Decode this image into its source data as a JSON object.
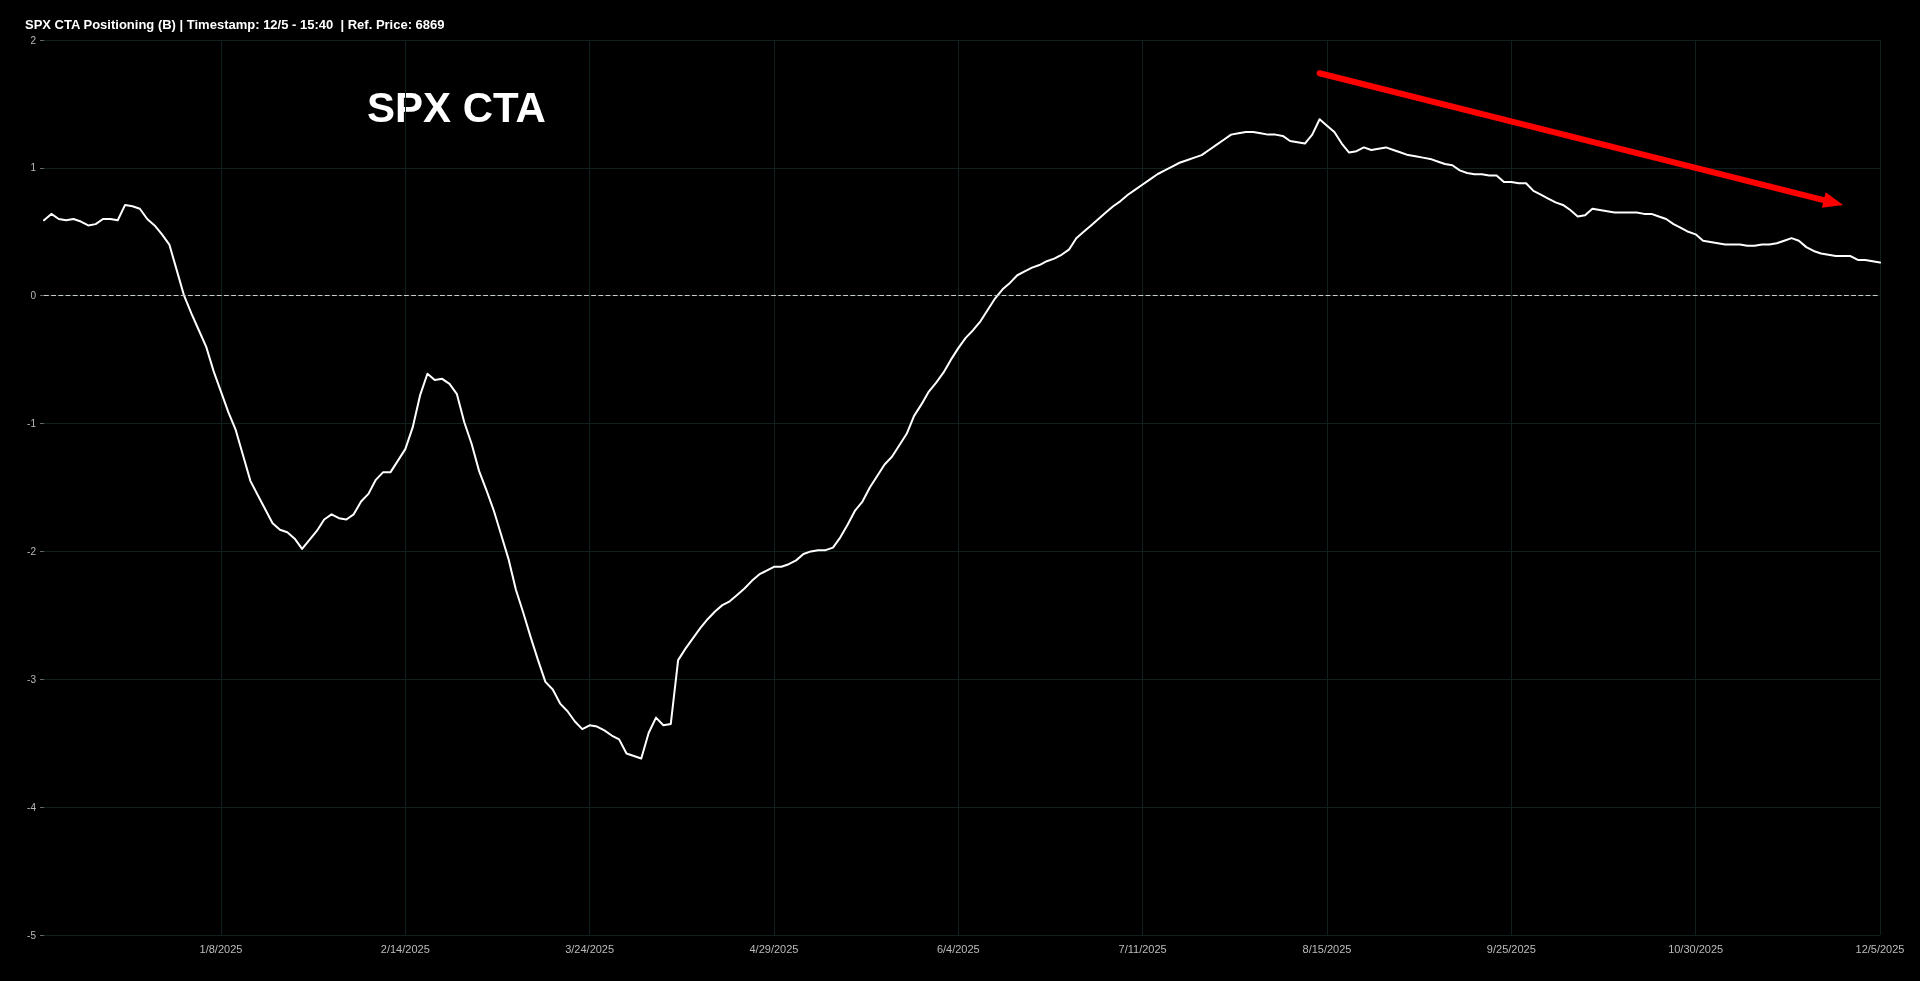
{
  "chart_data": {
    "type": "line",
    "title": "SPX CTA Positioning (B) | Timestamp: 12/5 - 15:40  | Ref. Price: 6869",
    "annotations": [
      "SPX CTA"
    ],
    "categories": [
      null,
      null,
      null,
      null,
      null,
      null,
      null,
      null,
      null,
      null,
      null,
      null,
      null,
      null,
      null,
      null,
      null,
      null,
      null,
      null,
      null,
      null,
      null,
      null,
      "1/8/2025",
      null,
      null,
      null,
      null,
      null,
      null,
      null,
      null,
      null,
      null,
      null,
      null,
      null,
      null,
      null,
      null,
      null,
      null,
      null,
      null,
      null,
      null,
      null,
      null,
      "2/14/2025",
      null,
      null,
      null,
      null,
      null,
      null,
      null,
      null,
      null,
      null,
      null,
      null,
      null,
      null,
      null,
      null,
      null,
      null,
      null,
      null,
      null,
      null,
      null,
      null,
      "3/24/2025",
      null,
      null,
      null,
      null,
      null,
      null,
      null,
      null,
      null,
      null,
      null,
      null,
      null,
      null,
      null,
      null,
      null,
      null,
      null,
      null,
      null,
      null,
      null,
      null,
      "4/29/2025",
      null,
      null,
      null,
      null,
      null,
      null,
      null,
      null,
      null,
      null,
      null,
      null,
      null,
      null,
      null,
      null,
      null,
      null,
      null,
      null,
      null,
      null,
      null,
      null,
      "6/4/2025",
      null,
      null,
      null,
      null,
      null,
      null,
      null,
      null,
      null,
      null,
      null,
      null,
      null,
      null,
      null,
      null,
      null,
      null,
      null,
      null,
      null,
      null,
      null,
      null,
      "7/11/2025",
      null,
      null,
      null,
      null,
      null,
      null,
      null,
      null,
      null,
      null,
      null,
      null,
      null,
      null,
      null,
      null,
      null,
      null,
      null,
      null,
      null,
      null,
      null,
      null,
      "8/15/2025",
      null,
      null,
      null,
      null,
      null,
      null,
      null,
      null,
      null,
      null,
      null,
      null,
      null,
      null,
      null,
      null,
      null,
      null,
      null,
      null,
      null,
      null,
      null,
      null,
      "9/25/2025",
      null,
      null,
      null,
      null,
      null,
      null,
      null,
      null,
      null,
      null,
      null,
      null,
      null,
      null,
      null,
      null,
      null,
      null,
      null,
      null,
      null,
      null,
      null,
      null,
      "10/30/2025",
      null,
      null,
      null,
      null,
      null,
      null,
      null,
      null,
      null,
      null,
      null,
      null,
      null,
      null,
      null,
      null,
      null,
      null,
      null,
      null,
      null,
      null,
      null,
      null,
      "12/5/2025"
    ],
    "series": [
      {
        "color": "#ffffff",
        "values": [
          0.59,
          0.64,
          0.6,
          0.59,
          0.6,
          0.58,
          0.55,
          0.56,
          0.6,
          0.6,
          0.59,
          0.71,
          0.7,
          0.68,
          0.6,
          0.55,
          0.48,
          0.4,
          0.2,
          0.0,
          -0.14,
          -0.27,
          -0.4,
          -0.59,
          -0.75,
          -0.91,
          -1.05,
          -1.25,
          -1.45,
          -1.56,
          -1.67,
          -1.78,
          -1.83,
          -1.85,
          -1.9,
          -1.98,
          -1.91,
          -1.84,
          -1.75,
          -1.71,
          -1.74,
          -1.75,
          -1.71,
          -1.61,
          -1.55,
          -1.44,
          -1.38,
          -1.38,
          -1.29,
          -1.2,
          -1.03,
          -0.78,
          -0.61,
          -0.66,
          -0.65,
          -0.69,
          -0.77,
          -0.99,
          -1.16,
          -1.37,
          -1.52,
          -1.68,
          -1.87,
          -2.06,
          -2.3,
          -2.48,
          -2.67,
          -2.85,
          -3.02,
          -3.08,
          -3.19,
          -3.25,
          -3.33,
          -3.39,
          -3.36,
          -3.37,
          -3.4,
          -3.44,
          -3.47,
          -3.58,
          -3.6,
          -3.62,
          -3.42,
          -3.3,
          -3.36,
          -3.35,
          -2.85,
          -2.76,
          -2.68,
          -2.6,
          -2.53,
          -2.47,
          -2.42,
          -2.39,
          -2.34,
          -2.29,
          -2.23,
          -2.18,
          -2.15,
          -2.12,
          -2.12,
          -2.1,
          -2.07,
          -2.02,
          -2.0,
          -1.99,
          -1.99,
          -1.97,
          -1.89,
          -1.79,
          -1.68,
          -1.61,
          -1.5,
          -1.41,
          -1.32,
          -1.26,
          -1.17,
          -1.08,
          -0.94,
          -0.85,
          -0.75,
          -0.68,
          -0.6,
          -0.5,
          -0.41,
          -0.33,
          -0.27,
          -0.2,
          -0.11,
          -0.02,
          0.05,
          0.1,
          0.16,
          0.19,
          0.22,
          0.24,
          0.27,
          0.29,
          0.32,
          0.36,
          0.45,
          0.5,
          0.55,
          0.6,
          0.65,
          0.7,
          0.74,
          0.79,
          0.83,
          0.87,
          0.91,
          0.95,
          0.98,
          1.01,
          1.04,
          1.06,
          1.08,
          1.1,
          1.14,
          1.18,
          1.22,
          1.26,
          1.27,
          1.28,
          1.28,
          1.27,
          1.26,
          1.26,
          1.25,
          1.21,
          1.2,
          1.19,
          1.26,
          1.38,
          1.33,
          1.28,
          1.19,
          1.12,
          1.13,
          1.16,
          1.14,
          1.15,
          1.16,
          1.14,
          1.12,
          1.1,
          1.09,
          1.08,
          1.07,
          1.05,
          1.03,
          1.02,
          0.98,
          0.96,
          0.95,
          0.95,
          0.94,
          0.94,
          0.89,
          0.89,
          0.88,
          0.88,
          0.82,
          0.79,
          0.76,
          0.73,
          0.71,
          0.67,
          0.62,
          0.63,
          0.68,
          0.67,
          0.66,
          0.65,
          0.65,
          0.65,
          0.65,
          0.64,
          0.64,
          0.62,
          0.6,
          0.56,
          0.53,
          0.5,
          0.48,
          0.43,
          0.42,
          0.41,
          0.4,
          0.4,
          0.4,
          0.39,
          0.39,
          0.4,
          0.4,
          0.41,
          0.43,
          0.45,
          0.43,
          0.38,
          0.35,
          0.33,
          0.32,
          0.31,
          0.31,
          0.31,
          0.28,
          0.28,
          0.27,
          0.26
        ]
      }
    ],
    "ylim": [
      -5,
      2
    ],
    "yticks": [
      -5,
      -4,
      -3,
      -2,
      -1,
      0,
      1,
      2
    ],
    "ref_lines": [
      {
        "axis": "y",
        "value": 0,
        "color": "#cccccc",
        "line_style": "dashed"
      }
    ],
    "grid": true,
    "marker": "none",
    "line_style": "solid"
  }
}
